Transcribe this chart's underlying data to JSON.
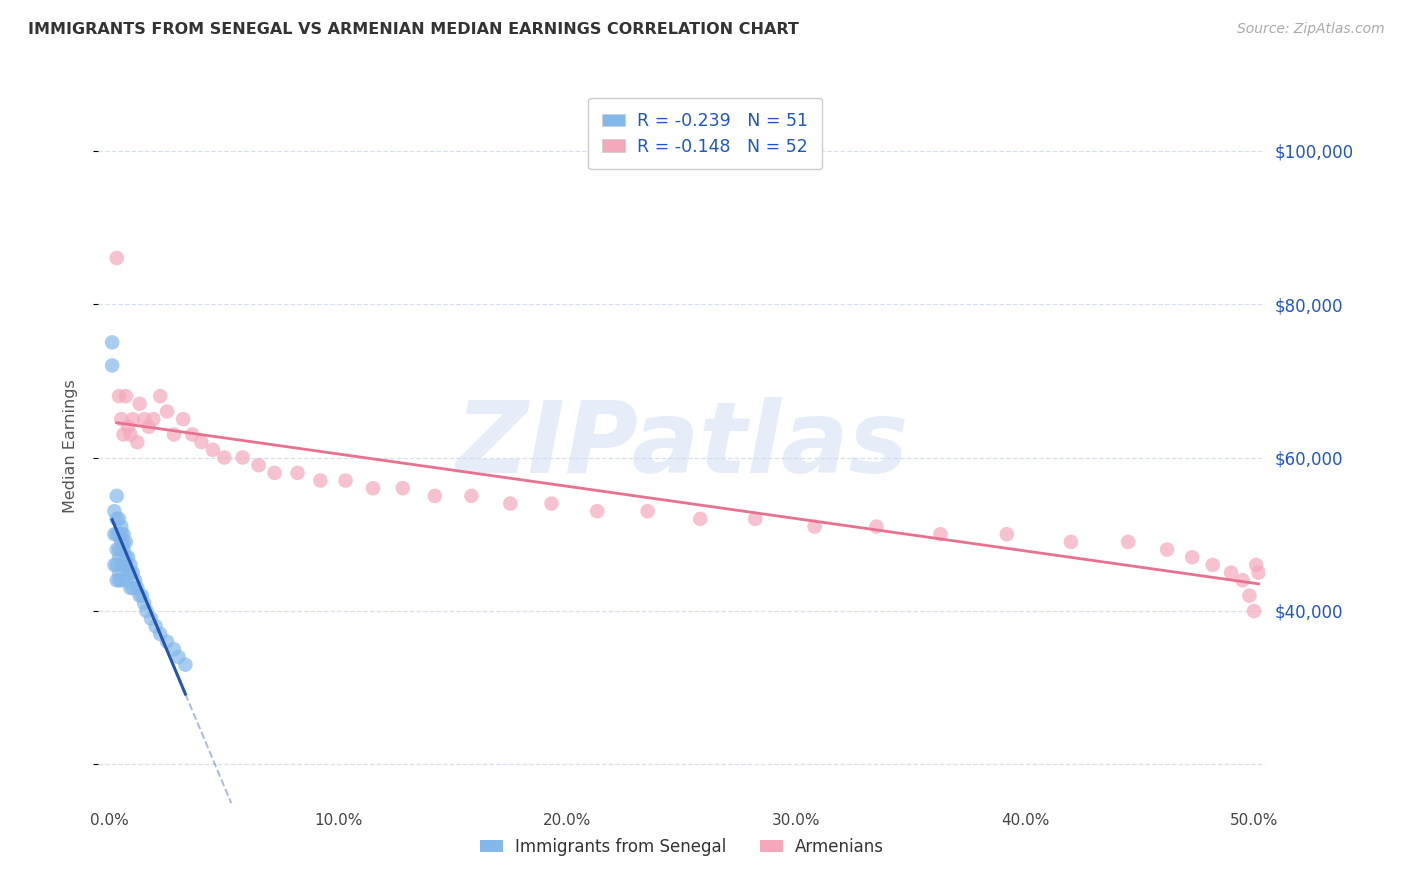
{
  "title": "IMMIGRANTS FROM SENEGAL VS ARMENIAN MEDIAN EARNINGS CORRELATION CHART",
  "source": "Source: ZipAtlas.com",
  "ylabel": "Median Earnings",
  "y_ticks": [
    20000,
    40000,
    60000,
    80000,
    100000
  ],
  "y_tick_labels_right": [
    "",
    "$40,000",
    "$60,000",
    "$80,000",
    "$100,000"
  ],
  "xlim": [
    -0.005,
    0.505
  ],
  "ylim": [
    15000,
    108000
  ],
  "x_ticks": [
    0.0,
    0.1,
    0.2,
    0.3,
    0.4,
    0.5
  ],
  "x_tick_labels": [
    "0.0%",
    "10.0%",
    "20.0%",
    "30.0%",
    "40.0%",
    "50.0%"
  ],
  "legend_entry1": "R = -0.239   N = 51",
  "legend_entry2": "R = -0.148   N = 52",
  "legend_label1": "Immigrants from Senegal",
  "legend_label2": "Armenians",
  "senegal_color": "#85b8ea",
  "armenian_color": "#f5a8bc",
  "senegal_line_color": "#2255b0",
  "armenian_line_color": "#e87090",
  "text_color_blue": "#2255c0",
  "background_color": "#ffffff",
  "grid_color": "#d8e0ee",
  "watermark_color": "#c8d8f0",
  "watermark_text": "ZIPatlas",
  "senegal_x": [
    0.001,
    0.001,
    0.002,
    0.002,
    0.002,
    0.003,
    0.003,
    0.003,
    0.003,
    0.003,
    0.003,
    0.004,
    0.004,
    0.004,
    0.004,
    0.004,
    0.004,
    0.005,
    0.005,
    0.005,
    0.005,
    0.005,
    0.005,
    0.006,
    0.006,
    0.006,
    0.006,
    0.007,
    0.007,
    0.007,
    0.007,
    0.008,
    0.008,
    0.009,
    0.009,
    0.009,
    0.01,
    0.01,
    0.011,
    0.012,
    0.013,
    0.014,
    0.015,
    0.016,
    0.018,
    0.02,
    0.022,
    0.025,
    0.028,
    0.03,
    0.033
  ],
  "senegal_y": [
    75000,
    72000,
    53000,
    50000,
    46000,
    55000,
    52000,
    50000,
    48000,
    46000,
    44000,
    52000,
    50000,
    48000,
    47000,
    45000,
    44000,
    51000,
    50000,
    49000,
    48000,
    46000,
    44000,
    50000,
    49000,
    48000,
    46000,
    49000,
    47000,
    46000,
    44000,
    47000,
    45000,
    46000,
    45000,
    43000,
    45000,
    43000,
    44000,
    43000,
    42000,
    42000,
    41000,
    40000,
    39000,
    38000,
    37000,
    36000,
    35000,
    34000,
    33000
  ],
  "armenian_x": [
    0.003,
    0.004,
    0.005,
    0.006,
    0.007,
    0.008,
    0.009,
    0.01,
    0.012,
    0.013,
    0.015,
    0.017,
    0.019,
    0.022,
    0.025,
    0.028,
    0.032,
    0.036,
    0.04,
    0.045,
    0.05,
    0.058,
    0.065,
    0.072,
    0.082,
    0.092,
    0.103,
    0.115,
    0.128,
    0.142,
    0.158,
    0.175,
    0.193,
    0.213,
    0.235,
    0.258,
    0.282,
    0.308,
    0.335,
    0.363,
    0.392,
    0.42,
    0.445,
    0.462,
    0.473,
    0.482,
    0.49,
    0.495,
    0.498,
    0.5,
    0.501,
    0.502
  ],
  "armenian_y": [
    86000,
    68000,
    65000,
    63000,
    68000,
    64000,
    63000,
    65000,
    62000,
    67000,
    65000,
    64000,
    65000,
    68000,
    66000,
    63000,
    65000,
    63000,
    62000,
    61000,
    60000,
    60000,
    59000,
    58000,
    58000,
    57000,
    57000,
    56000,
    56000,
    55000,
    55000,
    54000,
    54000,
    53000,
    53000,
    52000,
    52000,
    51000,
    51000,
    50000,
    50000,
    49000,
    49000,
    48000,
    47000,
    46000,
    45000,
    44000,
    42000,
    40000,
    46000,
    45000
  ]
}
